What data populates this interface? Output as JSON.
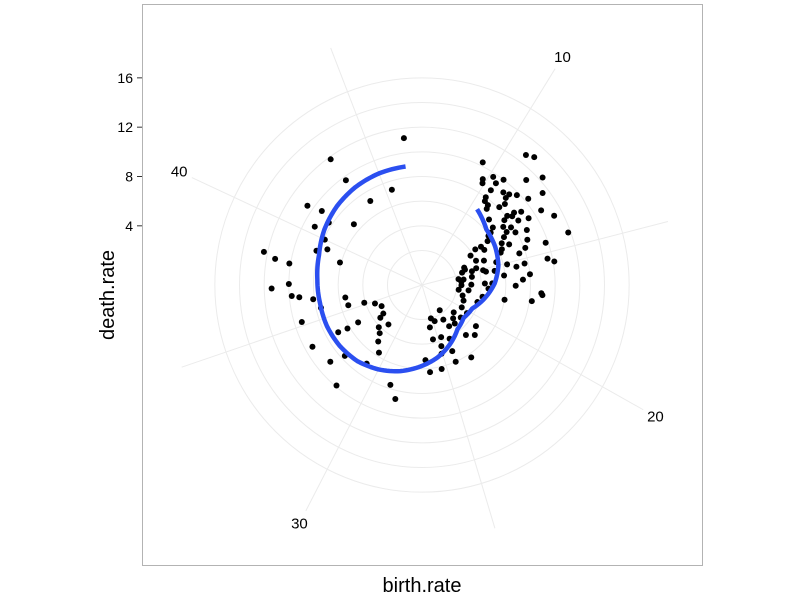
{
  "chart_data": {
    "type": "scatter",
    "coord": "polar",
    "xlabel": "birth.rate",
    "ylabel": "death.rate",
    "theta_ticks": [
      10,
      20,
      30,
      40
    ],
    "theta_range": [
      6.4,
      47.4
    ],
    "r_ticks": [
      4,
      8,
      12,
      16
    ],
    "r_range": [
      -0.8,
      19.8
    ],
    "grid": true,
    "legend": "none",
    "colors": {
      "points": "#000000",
      "smooth": "#2b4ff0",
      "grid": "#ebebeb",
      "panel_border": "#b3b3b3"
    },
    "points": [
      [
        11.1,
        13.0
      ],
      [
        11.9,
        12.3
      ],
      [
        12.4,
        11.5
      ],
      [
        13.5,
        11.3
      ],
      [
        14.4,
        11.8
      ],
      [
        11.5,
        11.2
      ],
      [
        12.2,
        10.3
      ],
      [
        15.5,
        10.1
      ],
      [
        15.3,
        9.6
      ],
      [
        13.0,
        10.6
      ],
      [
        10.8,
        12.7
      ],
      [
        12.5,
        9.2
      ],
      [
        13.0,
        9.4
      ],
      [
        12.8,
        8.6
      ],
      [
        14.5,
        9.8
      ],
      [
        17.1,
        8.9
      ],
      [
        17.2,
        9.0
      ],
      [
        17.6,
        8.2
      ],
      [
        16.3,
        7.4
      ],
      [
        14.4,
        8.1
      ],
      [
        13.5,
        8.8
      ],
      [
        14.0,
        8.5
      ],
      [
        15.3,
        7.7
      ],
      [
        16.0,
        8.0
      ],
      [
        15.4,
        7.0
      ],
      [
        14.6,
        7.5
      ],
      [
        13.3,
        7.9
      ],
      [
        12.2,
        8.1
      ],
      [
        12.4,
        8.4
      ],
      [
        11.4,
        9.4
      ],
      [
        10.7,
        10.0
      ],
      [
        11.7,
        9.8
      ],
      [
        13.8,
        7.0
      ],
      [
        15.9,
        5.9
      ],
      [
        17.8,
        6.0
      ],
      [
        16.7,
        6.8
      ],
      [
        15.1,
        6.3
      ],
      [
        13.9,
        6.3
      ],
      [
        13.5,
        6.5
      ],
      [
        13.0,
        7.3
      ],
      [
        12.9,
        7.8
      ],
      [
        12.3,
        8.7
      ],
      [
        11.6,
        8.6
      ],
      [
        11.4,
        9.0
      ],
      [
        11.1,
        9.2
      ],
      [
        10.5,
        9.4
      ],
      [
        10.2,
        9.7
      ],
      [
        9.4,
        10.3
      ],
      [
        9.8,
        9.1
      ],
      [
        9.9,
        8.8
      ],
      [
        10.5,
        8.7
      ],
      [
        11.5,
        8.1
      ],
      [
        12.3,
        7.7
      ],
      [
        12.6,
        7.3
      ],
      [
        13.2,
        6.9
      ],
      [
        14.1,
        6.1
      ],
      [
        14.7,
        5.5
      ],
      [
        15.4,
        5.2
      ],
      [
        16.5,
        4.9
      ],
      [
        17.9,
        4.2
      ],
      [
        17.0,
        4.6
      ],
      [
        16.5,
        4.3
      ],
      [
        15.3,
        4.5
      ],
      [
        15.1,
        4.3
      ],
      [
        14.2,
        4.6
      ],
      [
        13.3,
        5.0
      ],
      [
        12.8,
        5.6
      ],
      [
        12.5,
        5.9
      ],
      [
        12.4,
        6.2
      ],
      [
        12.2,
        6.6
      ],
      [
        11.6,
        6.8
      ],
      [
        11.0,
        7.3
      ],
      [
        10.9,
        7.6
      ],
      [
        10.6,
        7.7
      ],
      [
        10.5,
        8.0
      ],
      [
        14.7,
        3.8
      ],
      [
        15.6,
        3.3
      ],
      [
        16.6,
        3.2
      ],
      [
        17.4,
        3.0
      ],
      [
        18.3,
        2.6
      ],
      [
        19.0,
        2.8
      ],
      [
        16.7,
        2.4
      ],
      [
        17.5,
        2.2
      ],
      [
        16.1,
        2.4
      ],
      [
        15.6,
        2.2
      ],
      [
        15.8,
        2.6
      ],
      [
        14.7,
        2.6
      ],
      [
        14.4,
        2.9
      ],
      [
        14.1,
        2.9
      ],
      [
        13.1,
        3.8
      ],
      [
        12.8,
        4.4
      ],
      [
        12.9,
        4.9
      ],
      [
        13.9,
        4.0
      ],
      [
        14.9,
        3.4
      ],
      [
        18.6,
        3.9
      ],
      [
        20.3,
        3.5
      ],
      [
        20.0,
        2.9
      ],
      [
        21.2,
        3.3
      ],
      [
        21.6,
        5.1
      ],
      [
        20.9,
        4.7
      ],
      [
        22.2,
        4.6
      ],
      [
        23.8,
        4.1
      ],
      [
        24.1,
        5.1
      ],
      [
        24.2,
        6.0
      ],
      [
        23.0,
        6.3
      ],
      [
        25.4,
        6.2
      ],
      [
        26.3,
        6.3
      ],
      [
        26.6,
        5.3
      ],
      [
        25.1,
        5.0
      ],
      [
        24.9,
        4.4
      ],
      [
        25.6,
        3.7
      ],
      [
        24.6,
        3.7
      ],
      [
        23.1,
        3.2
      ],
      [
        22.3,
        3.3
      ],
      [
        21.3,
        2.6
      ],
      [
        22.0,
        2.9
      ],
      [
        23.3,
        2.5
      ],
      [
        22.9,
        1.7
      ],
      [
        25.2,
        2.0
      ],
      [
        24.7,
        2.3
      ],
      [
        25.7,
        2.7
      ],
      [
        28.4,
        8.7
      ],
      [
        28.9,
        7.7
      ],
      [
        31.5,
        9.9
      ],
      [
        32.6,
        8.9
      ],
      [
        30.9,
        7.0
      ],
      [
        30.6,
        5.7
      ],
      [
        31.2,
        5.0
      ],
      [
        31.6,
        4.4
      ],
      [
        32.1,
        4.1
      ],
      [
        31.5,
        3.4
      ],
      [
        32.8,
        3.5
      ],
      [
        33.0,
        3.1
      ],
      [
        34.0,
        2.9
      ],
      [
        34.7,
        3.3
      ],
      [
        35.2,
        4.1
      ],
      [
        35.4,
        5.4
      ],
      [
        33.7,
        5.2
      ],
      [
        33.7,
        6.2
      ],
      [
        33.8,
        7.0
      ],
      [
        35.7,
        7.6
      ],
      [
        36.3,
        8.1
      ],
      [
        36.5,
        9.2
      ],
      [
        36.6,
        9.8
      ],
      [
        37.0,
        11.4
      ],
      [
        37.2,
        10.0
      ],
      [
        38.2,
        10.1
      ],
      [
        38.3,
        11.3
      ],
      [
        39.2,
        8.2
      ],
      [
        39.5,
        7.4
      ],
      [
        41.1,
        10.5
      ],
      [
        41.3,
        9.3
      ],
      [
        41.0,
        8.3
      ],
      [
        43.3,
        9.7
      ],
      [
        40.4,
        9.1
      ],
      [
        40.0,
        7.9
      ],
      [
        41.9,
        6.6
      ],
      [
        43.8,
        7.2
      ],
      [
        45.4,
        7.3
      ],
      [
        38.9,
        6.1
      ],
      [
        36.1,
        5.5
      ],
      [
        32.3,
        7.7
      ],
      [
        33.8,
        9.4
      ],
      [
        35.2,
        9.4
      ],
      [
        46.6,
        11.2
      ],
      [
        43.3,
        11.8
      ],
      [
        38.5,
        12.3
      ]
    ],
    "smooth": [
      [
        10.5,
        6.8
      ],
      [
        12.0,
        6.1
      ],
      [
        13.5,
        5.9
      ],
      [
        15.0,
        5.6
      ],
      [
        16.5,
        5.1
      ],
      [
        18.0,
        4.4
      ],
      [
        19.5,
        3.7
      ],
      [
        21.0,
        3.5
      ],
      [
        22.5,
        3.8
      ],
      [
        24.0,
        4.5
      ],
      [
        25.5,
        5.2
      ],
      [
        27.0,
        5.8
      ],
      [
        28.5,
        6.4
      ],
      [
        30.0,
        6.9
      ],
      [
        31.5,
        7.3
      ],
      [
        33.0,
        7.5
      ],
      [
        34.5,
        7.6
      ],
      [
        36.0,
        7.6
      ],
      [
        37.5,
        7.7
      ],
      [
        39.0,
        7.9
      ],
      [
        40.5,
        8.3
      ],
      [
        42.0,
        8.6
      ],
      [
        43.5,
        8.8
      ],
      [
        45.0,
        8.9
      ],
      [
        46.5,
        8.9
      ]
    ]
  }
}
